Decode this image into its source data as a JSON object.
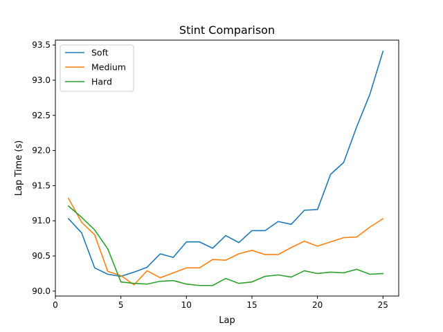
{
  "chart_data": {
    "type": "line",
    "title": "Stint Comparison",
    "xlabel": "Lap",
    "ylabel": "Lap Time (s)",
    "xlim": [
      0,
      26.2
    ],
    "ylim": [
      89.93,
      93.57
    ],
    "xticks": [
      0,
      5,
      10,
      15,
      20,
      25
    ],
    "xtick_labels": [
      "0",
      "5",
      "10",
      "15",
      "20",
      "25"
    ],
    "yticks": [
      90.0,
      90.5,
      91.0,
      91.5,
      92.0,
      92.5,
      93.0,
      93.5
    ],
    "ytick_labels": [
      "90.0",
      "90.5",
      "91.0",
      "91.5",
      "92.0",
      "92.5",
      "93.0",
      "93.5"
    ],
    "grid": false,
    "legend_position": "top-left",
    "x": [
      1,
      2,
      3,
      4,
      5,
      6,
      7,
      8,
      9,
      10,
      11,
      12,
      13,
      14,
      15,
      16,
      17,
      18,
      19,
      20,
      21,
      22,
      23,
      24,
      25
    ],
    "series": [
      {
        "name": "Soft",
        "color": "#1f77b4",
        "values": [
          91.03,
          90.83,
          90.33,
          90.24,
          90.21,
          90.27,
          90.34,
          90.53,
          90.48,
          90.7,
          90.7,
          90.61,
          90.79,
          90.69,
          90.86,
          90.86,
          90.99,
          90.95,
          91.15,
          91.16,
          91.66,
          91.83,
          92.34,
          92.8,
          93.41
        ]
      },
      {
        "name": "Medium",
        "color": "#ff7f0e",
        "values": [
          91.32,
          90.98,
          90.8,
          90.28,
          90.22,
          90.09,
          90.29,
          90.19,
          90.26,
          90.33,
          90.33,
          90.45,
          90.44,
          90.53,
          90.58,
          90.52,
          90.52,
          90.62,
          90.71,
          90.64,
          90.7,
          90.76,
          90.77,
          90.91,
          91.03
        ]
      },
      {
        "name": "Hard",
        "color": "#2ca02c",
        "values": [
          91.21,
          91.05,
          90.87,
          90.6,
          90.13,
          90.11,
          90.1,
          90.14,
          90.15,
          90.1,
          90.08,
          90.08,
          90.18,
          90.11,
          90.13,
          90.21,
          90.23,
          90.2,
          90.29,
          90.25,
          90.27,
          90.26,
          90.31,
          90.24,
          90.25
        ]
      }
    ]
  }
}
